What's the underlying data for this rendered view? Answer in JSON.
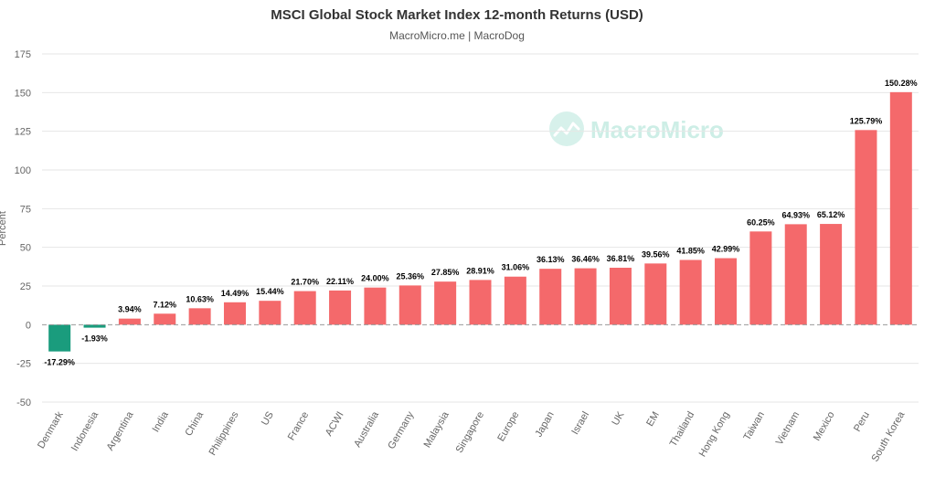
{
  "chart_data": {
    "type": "bar",
    "title": "MSCI Global Stock Market Index 12-month Returns (USD)",
    "subtitle": "MacroMicro.me | MacroDog",
    "ylabel": "Percent",
    "xlabel": "",
    "ylim": [
      -50,
      175
    ],
    "yticks": [
      -50,
      -25,
      0,
      25,
      50,
      75,
      100,
      125,
      150,
      175
    ],
    "grid": true,
    "legend": "none",
    "watermark": "MacroMicro",
    "categories": [
      "Denmark",
      "Indonesia",
      "Argentina",
      "India",
      "China",
      "Philippines",
      "US",
      "France",
      "ACWI",
      "Australia",
      "Germany",
      "Malaysia",
      "Singapore",
      "Europe",
      "Japan",
      "Israel",
      "UK",
      "EM",
      "Thailand",
      "Hong Kong",
      "Taiwan",
      "Vietnam",
      "Mexico",
      "Peru",
      "South Korea"
    ],
    "values": [
      -17.29,
      -1.93,
      3.94,
      7.12,
      10.63,
      14.49,
      15.44,
      21.7,
      22.11,
      24.0,
      25.36,
      27.85,
      28.91,
      31.06,
      36.13,
      36.46,
      36.81,
      39.56,
      41.85,
      42.99,
      60.25,
      64.93,
      65.12,
      125.79,
      150.28
    ],
    "data_labels": [
      "-17.29%",
      "-1.93%",
      "3.94%",
      "7.12%",
      "10.63%",
      "14.49%",
      "15.44%",
      "21.70%",
      "22.11%",
      "24.00%",
      "25.36%",
      "27.85%",
      "28.91%",
      "31.06%",
      "36.13%",
      "36.46%",
      "36.81%",
      "39.56%",
      "41.85%",
      "42.99%",
      "60.25%",
      "64.93%",
      "65.12%",
      "125.79%",
      "150.28%"
    ],
    "colors": {
      "positive": "#f4696b",
      "negative": "#1a9c7d",
      "grid": "#e6e6e6",
      "zero_line": "#999999"
    }
  }
}
